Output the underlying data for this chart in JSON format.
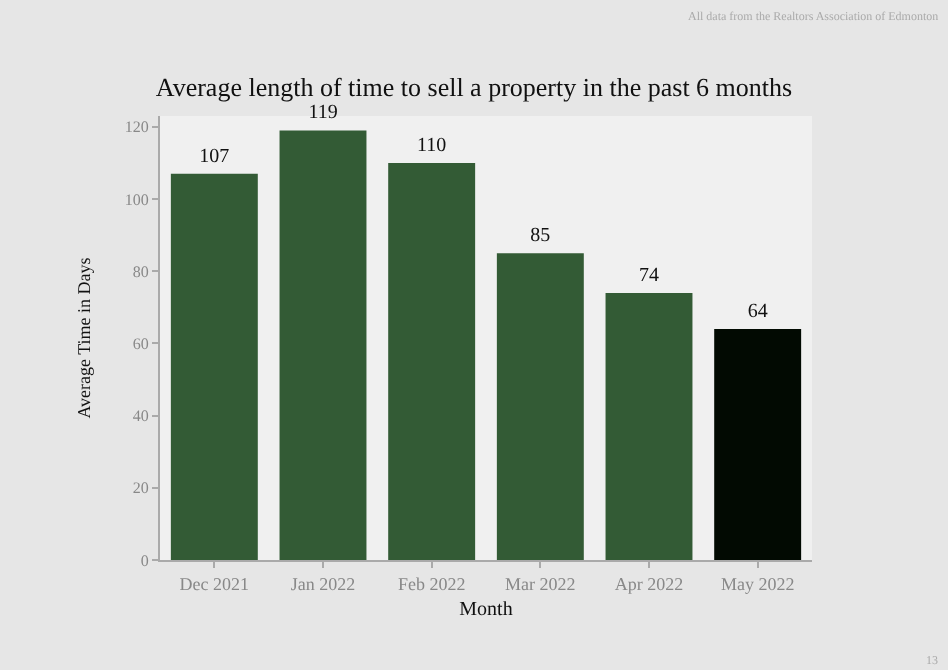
{
  "chart_data": {
    "type": "bar",
    "title": "Average length of time to sell a property in the past 6 months",
    "xlabel": "Month",
    "ylabel": "Average Time in Days",
    "categories": [
      "Dec 2021",
      "Jan 2022",
      "Feb 2022",
      "Mar 2022",
      "Apr 2022",
      "May 2022"
    ],
    "values": [
      107,
      119,
      110,
      85,
      74,
      64
    ],
    "colors": [
      "#335b35",
      "#335b35",
      "#335b35",
      "#335b35",
      "#335b35",
      "#020a02"
    ],
    "ylim": [
      0,
      123
    ],
    "yticks": [
      0,
      20,
      40,
      60,
      80,
      100,
      120
    ],
    "grid": false,
    "data_labels": true,
    "legend": false,
    "annotations": [
      "All data from the Realtors Association of Edmonton",
      "13"
    ]
  }
}
